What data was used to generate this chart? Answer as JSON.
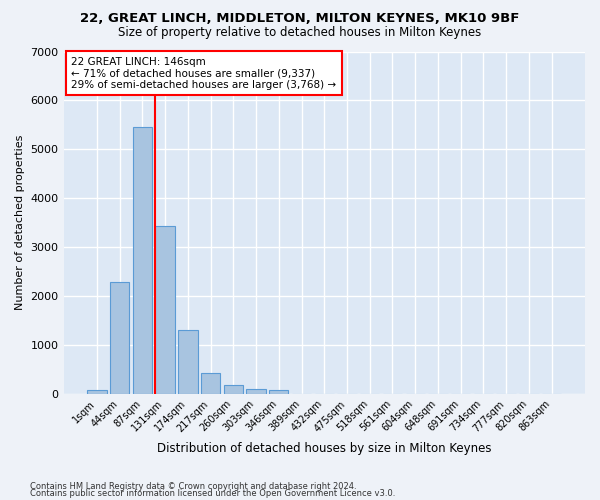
{
  "title_line1": "22, GREAT LINCH, MIDDLETON, MILTON KEYNES, MK10 9BF",
  "title_line2": "Size of property relative to detached houses in Milton Keynes",
  "xlabel": "Distribution of detached houses by size in Milton Keynes",
  "ylabel": "Number of detached properties",
  "footnote1": "Contains HM Land Registry data © Crown copyright and database right 2024.",
  "footnote2": "Contains public sector information licensed under the Open Government Licence v3.0.",
  "categories": [
    "1sqm",
    "44sqm",
    "87sqm",
    "131sqm",
    "174sqm",
    "217sqm",
    "260sqm",
    "303sqm",
    "346sqm",
    "389sqm",
    "432sqm",
    "475sqm",
    "518sqm",
    "561sqm",
    "604sqm",
    "648sqm",
    "691sqm",
    "734sqm",
    "777sqm",
    "820sqm",
    "863sqm"
  ],
  "bar_values": [
    70,
    2280,
    5460,
    3430,
    1310,
    430,
    170,
    100,
    70,
    0,
    0,
    0,
    0,
    0,
    0,
    0,
    0,
    0,
    0,
    0,
    0
  ],
  "bar_color": "#a8c4e0",
  "bar_edge_color": "#5b9bd5",
  "plot_bg_color": "#dde8f5",
  "fig_bg_color": "#eef2f8",
  "grid_color": "#ffffff",
  "vline_color": "red",
  "vline_x": 2.575,
  "ylim_max": 7000,
  "yticks": [
    0,
    1000,
    2000,
    3000,
    4000,
    5000,
    6000,
    7000
  ],
  "annotation_title": "22 GREAT LINCH: 146sqm",
  "annotation_line1": "← 71% of detached houses are smaller (9,337)",
  "annotation_line2": "29% of semi-detached houses are larger (3,768) →"
}
